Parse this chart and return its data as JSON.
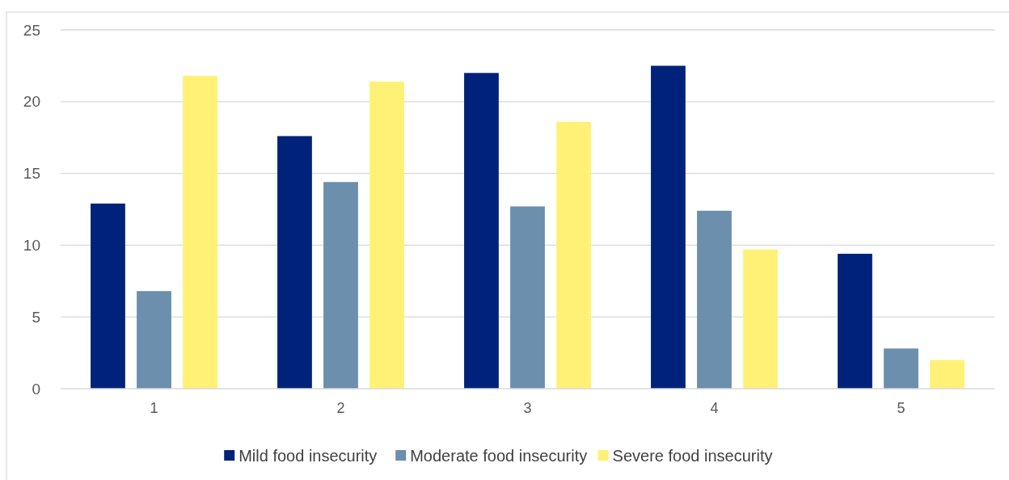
{
  "chart_data": {
    "type": "bar",
    "categories": [
      "1",
      "2",
      "3",
      "4",
      "5"
    ],
    "series": [
      {
        "name": "Mild food insecurity",
        "color": "#00227a",
        "values": [
          12.9,
          17.6,
          22.0,
          22.5,
          9.4
        ]
      },
      {
        "name": "Moderate food insecurity",
        "color": "#6b8fad",
        "values": [
          6.8,
          14.4,
          12.7,
          12.4,
          2.8
        ]
      },
      {
        "name": "Severe food insecurity",
        "color": "#fff176",
        "values": [
          21.8,
          21.4,
          18.6,
          9.7,
          2.0
        ]
      }
    ],
    "ylim": [
      0,
      25
    ],
    "yticks": [
      0,
      5,
      10,
      15,
      20,
      25
    ],
    "grid": "y",
    "legend": "bottom"
  }
}
